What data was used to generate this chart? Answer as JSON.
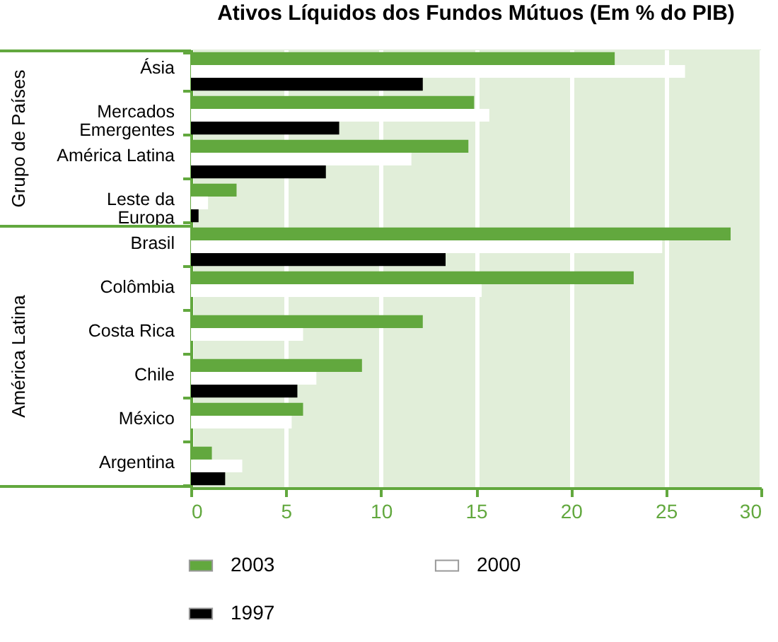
{
  "chart_data": {
    "type": "bar",
    "orientation": "horizontal",
    "title": "Ativos Líquidos dos Fundos Mútuos (Em % do PIB)",
    "categories": [
      "Ásia",
      "Mercados\nEmergentes",
      "América Latina",
      "Leste da\nEuropa",
      "Brasil",
      "Colômbia",
      "Costa Rica",
      "Chile",
      "México",
      "Argentina"
    ],
    "series": [
      {
        "name": "2003",
        "color": "#62a83e",
        "values": [
          22.3,
          14.9,
          14.6,
          2.4,
          28.4,
          23.3,
          12.2,
          9.0,
          5.9,
          1.1
        ]
      },
      {
        "name": "2000",
        "color": "#ffffff",
        "values": [
          26.0,
          15.7,
          11.6,
          0.9,
          24.8,
          15.3,
          5.9,
          6.6,
          5.3,
          2.7
        ]
      },
      {
        "name": "1997",
        "color": "#000000",
        "values": [
          12.2,
          7.8,
          7.1,
          0.4,
          13.4,
          null,
          null,
          5.6,
          null,
          1.8
        ]
      }
    ],
    "xlim": [
      0,
      30
    ],
    "xticks": [
      0,
      5,
      10,
      15,
      20,
      25,
      30
    ],
    "grid": "x",
    "legend": "bottom",
    "annotations": [
      "Grupo de Países",
      "América Latina"
    ]
  }
}
